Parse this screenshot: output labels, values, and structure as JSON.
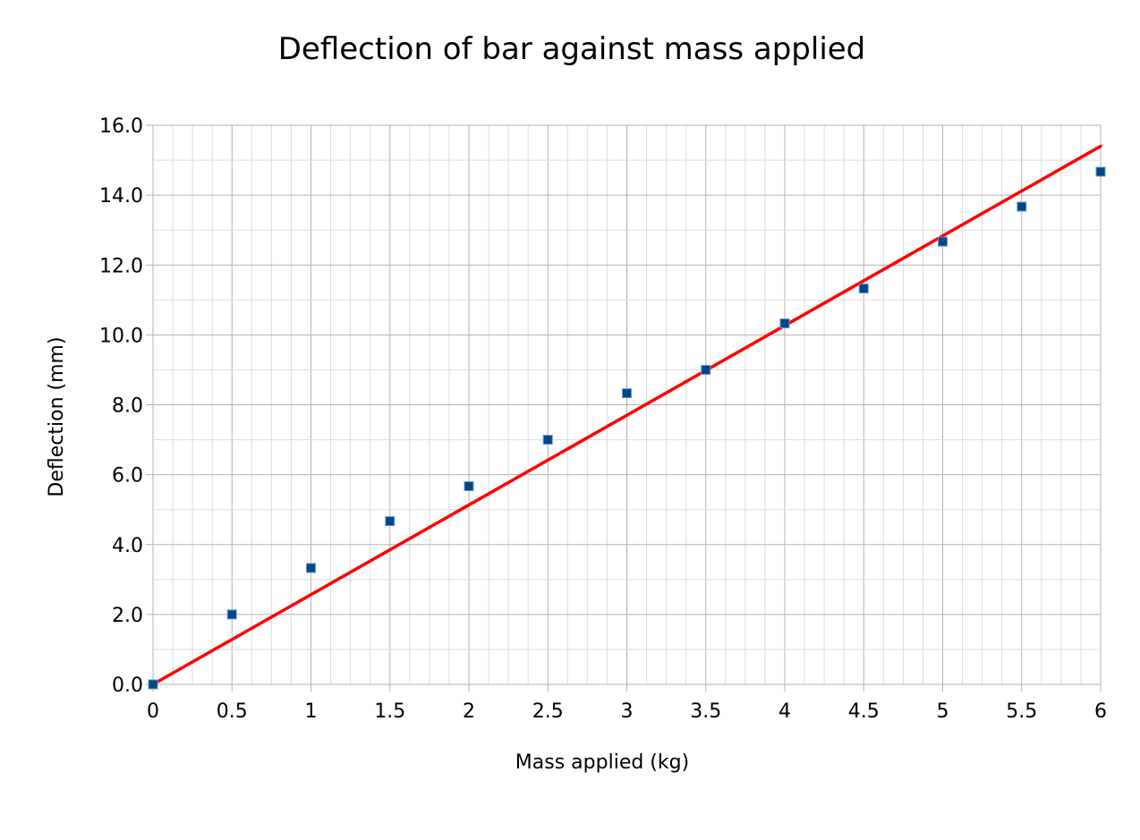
{
  "chart_data": {
    "type": "scatter",
    "title": "Deflection of bar against mass applied",
    "xlabel": "Mass applied (kg)",
    "ylabel": "Deflection (mm)",
    "xlim": [
      0,
      6
    ],
    "ylim": [
      0,
      16
    ],
    "x_ticks": [
      "0",
      "0.5",
      "1",
      "1.5",
      "2",
      "2.5",
      "3",
      "3.5",
      "4",
      "4.5",
      "5",
      "5.5",
      "6"
    ],
    "y_ticks": [
      "0.0",
      "2.0",
      "4.0",
      "6.0",
      "8.0",
      "10.0",
      "12.0",
      "14.0",
      "16.0"
    ],
    "grid": true,
    "minor_grid": true,
    "legend": "none",
    "series": [
      {
        "type": "scatter",
        "color": "#004586",
        "marker": "square",
        "points": [
          {
            "x": 0,
            "y": 0.0
          },
          {
            "x": 0.5,
            "y": 2.0
          },
          {
            "x": 1,
            "y": 3.33
          },
          {
            "x": 1.5,
            "y": 4.67
          },
          {
            "x": 2,
            "y": 5.67
          },
          {
            "x": 2.5,
            "y": 7.0
          },
          {
            "x": 3,
            "y": 8.33
          },
          {
            "x": 3.5,
            "y": 9.0
          },
          {
            "x": 4,
            "y": 10.33
          },
          {
            "x": 4.5,
            "y": 11.33
          },
          {
            "x": 5,
            "y": 12.67
          },
          {
            "x": 5.5,
            "y": 13.67
          },
          {
            "x": 6,
            "y": 14.67
          }
        ]
      },
      {
        "type": "line",
        "trendline": "linear",
        "color": "#ff0000",
        "points": [
          {
            "x": 0,
            "y": 0.0
          },
          {
            "x": 6,
            "y": 15.4
          }
        ]
      }
    ]
  }
}
